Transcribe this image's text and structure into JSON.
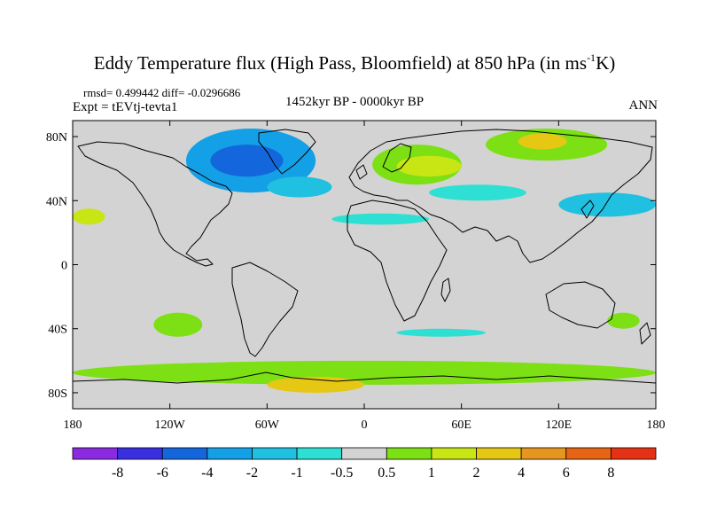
{
  "title": {
    "text": "Eddy Temperature flux (High Pass, Bloomfield) at 850 hPa (in ms",
    "superscript": "-1",
    "unit_tail": "K)"
  },
  "header": {
    "stats": "rmsd= 0.499442 diff= -0.0296686",
    "expt": "Expt = tEVtj-tevta1",
    "period": "1452kyr BP - 0000kyr BP",
    "season": "ANN"
  },
  "axes": {
    "x_ticks": [
      "180",
      "120W",
      "60W",
      "0",
      "60E",
      "120E",
      "180"
    ],
    "x_values": [
      -180,
      -120,
      -60,
      0,
      60,
      120,
      180
    ],
    "y_ticks": [
      "80N",
      "40N",
      "0",
      "40S",
      "80S"
    ],
    "y_values": [
      80,
      40,
      0,
      -40,
      -80
    ],
    "lon_range": [
      -180,
      180
    ],
    "lat_range": [
      -90,
      90
    ]
  },
  "colorbar": {
    "labels": [
      "-8",
      "-6",
      "-4",
      "-2",
      "-1",
      "-0.5",
      "0.5",
      "1",
      "2",
      "4",
      "6",
      "8"
    ],
    "colors": [
      "#8a2be2",
      "#3a2fe0",
      "#1466dc",
      "#14a0e6",
      "#20c0e0",
      "#2ee0d4",
      "#d3d3d3",
      "#7ce014",
      "#c8e614",
      "#e6c814",
      "#e6961e",
      "#e66414",
      "#e63214"
    ]
  },
  "colors": {
    "land_sea_bg": "#d3d3d3",
    "coastline": "#000000"
  },
  "chart_data": {
    "type": "heatmap",
    "title": "Eddy Temperature flux (High Pass, Bloomfield) at 850 hPa (in ms-1K)",
    "xlabel": "",
    "ylabel": "",
    "xlim": [
      -180,
      180
    ],
    "ylim": [
      -90,
      90
    ],
    "legend": "bottom",
    "regions": [
      {
        "name": "canada-greenland-negative",
        "lon": [
          -110,
          -30
        ],
        "lat": [
          45,
          85
        ],
        "value": -2,
        "color": "#14a0e6"
      },
      {
        "name": "canada-core-negative",
        "lon": [
          -95,
          -50
        ],
        "lat": [
          55,
          75
        ],
        "value": -4,
        "color": "#1466dc"
      },
      {
        "name": "north-atlantic-negative",
        "lon": [
          -60,
          -20
        ],
        "lat": [
          42,
          55
        ],
        "value": -1,
        "color": "#20c0e0"
      },
      {
        "name": "europe-positive",
        "lon": [
          5,
          60
        ],
        "lat": [
          50,
          75
        ],
        "value": 1,
        "color": "#7ce014"
      },
      {
        "name": "eastern-europe-positive",
        "lon": [
          20,
          60
        ],
        "lat": [
          55,
          68
        ],
        "value": 2,
        "color": "#c8e614"
      },
      {
        "name": "arctic-russia-positive",
        "lon": [
          75,
          150
        ],
        "lat": [
          65,
          85
        ],
        "value": 1,
        "color": "#7ce014"
      },
      {
        "name": "siberia-arctic-strong",
        "lon": [
          95,
          125
        ],
        "lat": [
          72,
          82
        ],
        "value": 4,
        "color": "#e6c814"
      },
      {
        "name": "central-asia-negative",
        "lon": [
          40,
          100
        ],
        "lat": [
          40,
          50
        ],
        "value": -0.5,
        "color": "#2ee0d4"
      },
      {
        "name": "north-africa-negative",
        "lon": [
          -20,
          40
        ],
        "lat": [
          25,
          32
        ],
        "value": -0.5,
        "color": "#2ee0d4"
      },
      {
        "name": "north-pacific-negative",
        "lon": [
          120,
          180
        ],
        "lat": [
          30,
          45
        ],
        "value": -1,
        "color": "#20c0e0"
      },
      {
        "name": "north-pacific-east-positive",
        "lon": [
          -180,
          -160
        ],
        "lat": [
          25,
          35
        ],
        "value": 1,
        "color": "#c8e614"
      },
      {
        "name": "south-pacific-positive",
        "lon": [
          -130,
          -100
        ],
        "lat": [
          -45,
          -30
        ],
        "value": 0.5,
        "color": "#7ce014"
      },
      {
        "name": "south-indian-negative",
        "lon": [
          20,
          75
        ],
        "lat": [
          -45,
          -40
        ],
        "value": -0.5,
        "color": "#2ee0d4"
      },
      {
        "name": "australia-positive",
        "lon": [
          150,
          170
        ],
        "lat": [
          -40,
          -30
        ],
        "value": 1,
        "color": "#7ce014"
      },
      {
        "name": "southern-ocean-positive",
        "lon": [
          -180,
          180
        ],
        "lat": [
          -75,
          -60
        ],
        "value": 1,
        "color": "#7ce014"
      },
      {
        "name": "antarctic-coast-strong",
        "lon": [
          -60,
          0
        ],
        "lat": [
          -80,
          -70
        ],
        "value": 4,
        "color": "#e6c814"
      }
    ]
  }
}
